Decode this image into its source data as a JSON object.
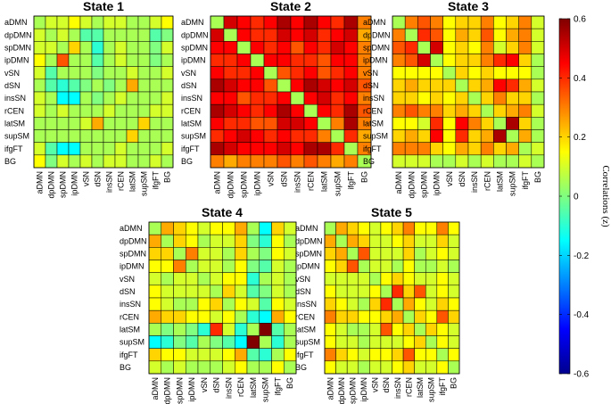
{
  "figure": {
    "colorbar": {
      "label": "Correlations (z)",
      "ticks": [
        "0.6",
        "0.4",
        "0.2",
        "0",
        "-0.2",
        "-0.4",
        "-0.6"
      ],
      "range": [
        -0.6,
        0.6
      ],
      "colormap": "jet"
    }
  },
  "chart_data": [
    {
      "type": "heatmap",
      "title": "State 1",
      "rows": [
        "aDMN",
        "dpDMN",
        "spDMN",
        "ipDMN",
        "vSN",
        "dSN",
        "insSN",
        "rCEN",
        "latSM",
        "supSM",
        "ifgFT",
        "BG"
      ],
      "cols": [
        "aDMN",
        "dpDMN",
        "spDMN",
        "ipDMN",
        "vSN",
        "dSN",
        "insSN",
        "rCEN",
        "latSM",
        "supSM",
        "ifgFT",
        "BG"
      ],
      "zlim": [
        -0.6,
        0.6
      ],
      "values": [
        [
          0.05,
          0.1,
          0.1,
          0.15,
          0.1,
          0.05,
          0.1,
          0.1,
          0.05,
          0.05,
          0.1,
          0.15
        ],
        [
          0.1,
          0.05,
          0.1,
          0.05,
          -0.05,
          -0.05,
          0.05,
          0.05,
          0.05,
          0.05,
          -0.05,
          0.0
        ],
        [
          0.1,
          0.1,
          0.05,
          0.2,
          0.05,
          -0.1,
          0.05,
          0.1,
          0.05,
          0.05,
          0.0,
          0.1
        ],
        [
          0.15,
          0.05,
          0.35,
          0.05,
          0.05,
          -0.05,
          0.05,
          0.1,
          0.05,
          0.05,
          0.0,
          0.05
        ],
        [
          0.1,
          -0.05,
          0.05,
          0.05,
          0.05,
          0.0,
          0.05,
          0.05,
          0.1,
          0.05,
          0.05,
          0.1
        ],
        [
          0.05,
          -0.05,
          -0.1,
          -0.05,
          0.0,
          0.05,
          0.0,
          0.05,
          0.25,
          0.05,
          0.05,
          0.05
        ],
        [
          0.1,
          0.05,
          -0.15,
          -0.15,
          0.05,
          0.0,
          0.05,
          0.1,
          0.05,
          0.05,
          0.05,
          0.1
        ],
        [
          0.1,
          0.05,
          0.1,
          0.05,
          0.05,
          0.05,
          0.1,
          0.05,
          0.05,
          0.05,
          0.1,
          0.1
        ],
        [
          0.05,
          0.05,
          0.05,
          0.05,
          0.1,
          0.25,
          0.05,
          0.05,
          0.05,
          0.2,
          0.05,
          0.05
        ],
        [
          0.05,
          0.05,
          0.05,
          0.05,
          0.05,
          0.05,
          0.05,
          0.05,
          0.2,
          0.05,
          0.05,
          0.05
        ],
        [
          0.1,
          -0.05,
          -0.15,
          -0.15,
          0.05,
          0.05,
          0.05,
          0.1,
          0.05,
          0.05,
          0.05,
          0.1
        ],
        [
          0.15,
          0.0,
          0.1,
          0.05,
          0.1,
          0.05,
          0.1,
          0.1,
          0.05,
          0.05,
          0.1,
          0.05
        ]
      ]
    },
    {
      "type": "heatmap",
      "title": "State 2",
      "rows": [
        "aDMN",
        "dpDMN",
        "spDMN",
        "ipDMN",
        "vSN",
        "dSN",
        "insSN",
        "rCEN",
        "latSM",
        "supSM",
        "ifgFT",
        "BG"
      ],
      "cols": [
        "aDMN",
        "dpDMN",
        "spDMN",
        "ipDMN",
        "vSN",
        "dSN",
        "insSN",
        "rCEN",
        "latSM",
        "supSM",
        "ifgFT",
        "BG"
      ],
      "zlim": [
        -0.6,
        0.6
      ],
      "values": [
        [
          0.05,
          0.5,
          0.45,
          0.4,
          0.45,
          0.55,
          0.45,
          0.55,
          0.45,
          0.4,
          0.55,
          0.3
        ],
        [
          0.5,
          0.05,
          0.45,
          0.4,
          0.4,
          0.5,
          0.45,
          0.5,
          0.4,
          0.45,
          0.5,
          0.25
        ],
        [
          0.45,
          0.45,
          0.05,
          0.45,
          0.4,
          0.45,
          0.35,
          0.45,
          0.4,
          0.5,
          0.45,
          0.3
        ],
        [
          0.4,
          0.4,
          0.45,
          0.05,
          0.45,
          0.45,
          0.4,
          0.4,
          0.35,
          0.45,
          0.45,
          0.3
        ],
        [
          0.45,
          0.4,
          0.4,
          0.45,
          0.05,
          0.35,
          0.4,
          0.45,
          0.35,
          0.4,
          0.45,
          0.3
        ],
        [
          0.55,
          0.5,
          0.45,
          0.45,
          0.35,
          0.05,
          0.45,
          0.55,
          0.5,
          0.45,
          0.5,
          0.35
        ],
        [
          0.45,
          0.45,
          0.35,
          0.4,
          0.4,
          0.45,
          0.05,
          0.45,
          0.5,
          0.4,
          0.45,
          0.3
        ],
        [
          0.55,
          0.5,
          0.45,
          0.4,
          0.45,
          0.55,
          0.45,
          0.05,
          0.45,
          0.4,
          0.55,
          0.35
        ],
        [
          0.45,
          0.4,
          0.4,
          0.35,
          0.35,
          0.5,
          0.5,
          0.45,
          0.05,
          0.3,
          0.55,
          0.3
        ],
        [
          0.4,
          0.45,
          0.5,
          0.45,
          0.4,
          0.45,
          0.4,
          0.4,
          0.3,
          0.05,
          0.4,
          0.25
        ],
        [
          0.55,
          0.5,
          0.45,
          0.45,
          0.45,
          0.5,
          0.45,
          0.55,
          0.55,
          0.4,
          0.05,
          0.3
        ],
        [
          0.3,
          0.25,
          0.3,
          0.3,
          0.3,
          0.35,
          0.3,
          0.35,
          0.3,
          0.25,
          0.3,
          0.05
        ]
      ]
    },
    {
      "type": "heatmap",
      "title": "State 3",
      "rows": [
        "aDMN",
        "dpDMN",
        "spDMN",
        "ipDMN",
        "vSN",
        "dSN",
        "insSN",
        "rCEN",
        "latSM",
        "supSM",
        "ifgFT",
        "BG"
      ],
      "cols": [
        "aDMN",
        "dpDMN",
        "spDMN",
        "ipDMN",
        "vSN",
        "dSN",
        "insSN",
        "rCEN",
        "latSM",
        "supSM",
        "ifgFT",
        "BG"
      ],
      "zlim": [
        -0.6,
        0.6
      ],
      "values": [
        [
          0.05,
          0.3,
          0.35,
          0.3,
          0.15,
          0.2,
          0.2,
          0.3,
          0.15,
          0.2,
          0.3,
          0.1
        ],
        [
          0.3,
          0.05,
          0.4,
          0.35,
          0.15,
          0.25,
          0.2,
          0.35,
          0.15,
          0.25,
          0.3,
          0.1
        ],
        [
          0.35,
          0.4,
          0.05,
          0.5,
          0.15,
          0.2,
          0.15,
          0.3,
          0.1,
          0.2,
          0.3,
          0.1
        ],
        [
          0.3,
          0.35,
          0.5,
          0.05,
          0.15,
          0.2,
          0.2,
          0.3,
          0.4,
          0.45,
          0.2,
          0.05
        ],
        [
          0.15,
          0.15,
          0.15,
          0.15,
          0.05,
          0.2,
          0.15,
          0.2,
          0.15,
          0.15,
          0.15,
          0.05
        ],
        [
          0.2,
          0.25,
          0.2,
          0.2,
          0.2,
          0.05,
          0.2,
          0.25,
          0.45,
          0.4,
          0.25,
          0.1
        ],
        [
          0.2,
          0.2,
          0.15,
          0.2,
          0.15,
          0.2,
          0.05,
          0.2,
          0.3,
          0.2,
          0.2,
          0.05
        ],
        [
          0.3,
          0.35,
          0.3,
          0.3,
          0.2,
          0.25,
          0.2,
          0.05,
          0.2,
          0.25,
          0.3,
          0.1
        ],
        [
          0.15,
          0.15,
          0.1,
          0.4,
          0.15,
          0.45,
          0.3,
          0.2,
          0.05,
          0.55,
          0.2,
          0.05
        ],
        [
          0.2,
          0.25,
          0.2,
          0.45,
          0.15,
          0.4,
          0.2,
          0.25,
          0.55,
          0.05,
          0.25,
          0.05
        ],
        [
          0.3,
          0.3,
          0.3,
          0.2,
          0.15,
          0.25,
          0.2,
          0.3,
          0.2,
          0.25,
          0.05,
          0.1
        ],
        [
          0.1,
          0.1,
          0.1,
          0.05,
          0.05,
          0.1,
          0.05,
          0.1,
          0.05,
          0.05,
          0.1,
          0.05
        ]
      ]
    },
    {
      "type": "heatmap",
      "title": "State 4",
      "rows": [
        "aDMN",
        "dpDMN",
        "spDMN",
        "ipDMN",
        "vSN",
        "dSN",
        "insSN",
        "rCEN",
        "latSM",
        "supSM",
        "ifgFT",
        "BG"
      ],
      "cols": [
        "aDMN",
        "dpDMN",
        "spDMN",
        "ipDMN",
        "vSN",
        "dSN",
        "insSN",
        "rCEN",
        "latSM",
        "supSM",
        "ifgFT",
        "BG"
      ],
      "zlim": [
        -0.6,
        0.6
      ],
      "values": [
        [
          0.05,
          0.25,
          0.2,
          0.15,
          0.1,
          0.15,
          0.15,
          0.25,
          0.05,
          -0.15,
          0.2,
          0.1
        ],
        [
          0.25,
          0.05,
          0.2,
          0.15,
          0.05,
          0.1,
          0.1,
          0.2,
          0.0,
          -0.1,
          0.15,
          0.05
        ],
        [
          0.2,
          0.2,
          0.05,
          0.3,
          0.1,
          0.1,
          0.05,
          0.2,
          0.05,
          0.0,
          0.15,
          0.1
        ],
        [
          0.15,
          0.15,
          0.3,
          0.05,
          0.1,
          0.1,
          0.05,
          0.15,
          0.0,
          -0.05,
          0.1,
          0.05
        ],
        [
          0.1,
          0.05,
          0.1,
          0.1,
          0.05,
          0.1,
          0.15,
          0.15,
          -0.1,
          0.05,
          0.1,
          0.05
        ],
        [
          0.15,
          0.1,
          0.1,
          0.1,
          0.1,
          0.05,
          0.2,
          0.1,
          -0.05,
          0.0,
          0.1,
          0.05
        ],
        [
          0.15,
          0.1,
          0.05,
          0.05,
          0.15,
          0.2,
          0.05,
          0.15,
          0.1,
          -0.05,
          0.15,
          0.1
        ],
        [
          0.25,
          0.2,
          0.2,
          0.15,
          0.15,
          0.1,
          0.15,
          0.05,
          -0.1,
          -0.15,
          0.25,
          0.15
        ],
        [
          0.05,
          0.0,
          0.05,
          0.0,
          -0.1,
          0.4,
          0.1,
          -0.1,
          0.05,
          0.6,
          -0.05,
          0.05
        ],
        [
          -0.15,
          -0.1,
          0.0,
          -0.05,
          0.05,
          0.0,
          -0.05,
          -0.15,
          0.6,
          0.05,
          -0.1,
          0.05
        ],
        [
          0.2,
          0.15,
          0.15,
          0.1,
          0.1,
          0.1,
          0.15,
          0.25,
          -0.05,
          -0.1,
          0.05,
          0.15
        ],
        [
          0.1,
          0.05,
          0.1,
          0.05,
          0.05,
          0.05,
          0.1,
          0.15,
          0.05,
          0.05,
          0.15,
          0.05
        ]
      ]
    },
    {
      "type": "heatmap",
      "title": "State 5",
      "rows": [
        "aDMN",
        "dpDMN",
        "spDMN",
        "ipDMN",
        "vSN",
        "dSN",
        "insSN",
        "rCEN",
        "latSM",
        "supSM",
        "ifgFT",
        "BG"
      ],
      "cols": [
        "aDMN",
        "dpDMN",
        "spDMN",
        "ipDMN",
        "vSN",
        "dSN",
        "insSN",
        "rCEN",
        "latSM",
        "supSM",
        "ifgFT",
        "BG"
      ],
      "zlim": [
        -0.6,
        0.6
      ],
      "values": [
        [
          0.05,
          0.25,
          0.2,
          0.15,
          0.1,
          0.15,
          0.2,
          0.3,
          0.15,
          0.15,
          0.3,
          0.15
        ],
        [
          0.25,
          0.05,
          0.25,
          0.2,
          0.1,
          0.1,
          0.15,
          0.2,
          0.1,
          0.1,
          0.2,
          0.1
        ],
        [
          0.2,
          0.25,
          0.05,
          0.35,
          0.1,
          0.1,
          0.1,
          0.2,
          0.05,
          0.1,
          0.15,
          0.1
        ],
        [
          0.15,
          0.2,
          0.35,
          0.05,
          0.1,
          0.1,
          0.05,
          0.15,
          0.05,
          0.05,
          0.1,
          0.05
        ],
        [
          0.1,
          0.1,
          0.1,
          0.1,
          0.05,
          0.15,
          0.2,
          0.15,
          0.1,
          0.1,
          0.15,
          0.1
        ],
        [
          0.15,
          0.1,
          0.1,
          0.1,
          0.15,
          0.05,
          0.4,
          0.2,
          0.35,
          0.1,
          0.15,
          0.1
        ],
        [
          0.2,
          0.15,
          0.1,
          0.05,
          0.2,
          0.4,
          0.05,
          0.25,
          0.15,
          0.1,
          0.2,
          0.15
        ],
        [
          0.3,
          0.2,
          0.2,
          0.15,
          0.15,
          0.2,
          0.25,
          0.05,
          0.2,
          0.15,
          0.35,
          0.2
        ],
        [
          0.15,
          0.1,
          0.05,
          0.05,
          0.1,
          0.35,
          0.15,
          0.2,
          0.05,
          0.2,
          0.15,
          0.1
        ],
        [
          0.15,
          0.1,
          0.1,
          0.05,
          0.1,
          0.1,
          0.1,
          0.15,
          0.2,
          0.05,
          0.15,
          0.1
        ],
        [
          0.3,
          0.2,
          0.15,
          0.1,
          0.15,
          0.15,
          0.2,
          0.35,
          0.15,
          0.15,
          0.05,
          0.15
        ],
        [
          0.15,
          0.1,
          0.1,
          0.05,
          0.1,
          0.1,
          0.15,
          0.2,
          0.1,
          0.1,
          0.15,
          0.05
        ]
      ]
    }
  ]
}
